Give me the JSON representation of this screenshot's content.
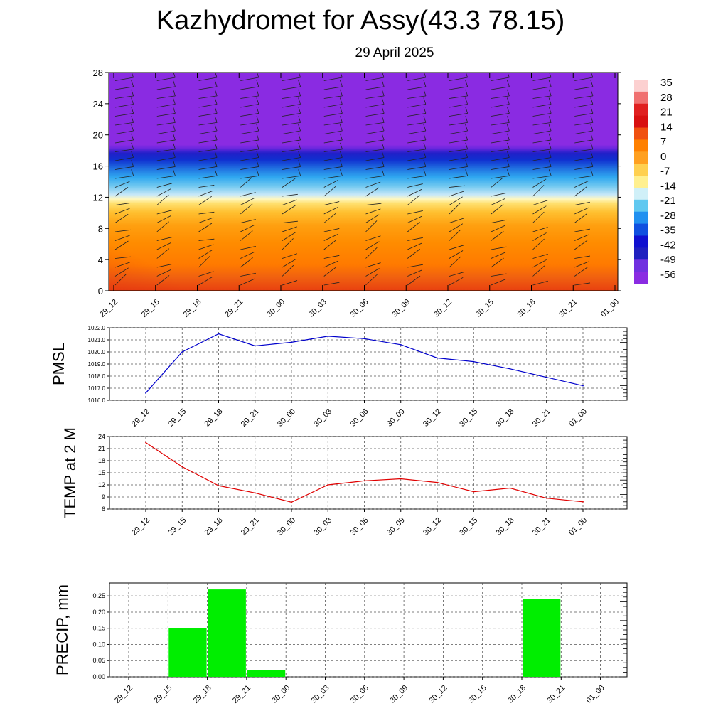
{
  "title": "Kazhydromet for Assy(43.3 78.15)",
  "subtitle": "29 April 2025",
  "colors": {
    "pmsl_line": "#0000cc",
    "temp_line": "#e00000",
    "precip_bar": "#00ee00",
    "purple": "#8a2be2",
    "deep_blue": "#1010d0",
    "yellow": "#ffe060",
    "orange": "#ff8c00",
    "red": "#e03010"
  },
  "chart_data": [
    {
      "type": "heatmap",
      "title": "",
      "xlabel": "",
      "ylabel": "",
      "categories": [
        "29_12",
        "29_15",
        "29_18",
        "29_21",
        "30_00",
        "30_03",
        "30_06",
        "30_09",
        "30_12",
        "30_15",
        "30_18",
        "30_21",
        "01_00"
      ],
      "y_ticks": [
        0,
        4,
        8,
        12,
        16,
        20,
        24,
        28
      ],
      "ylim": [
        0,
        28
      ],
      "colorbar_labels": [
        "35",
        "28",
        "21",
        "14",
        "7",
        "0",
        "-7",
        "-14",
        "-21",
        "-28",
        "-35",
        "-42",
        "-49",
        "-56"
      ],
      "overlay": "wind barbs"
    },
    {
      "type": "line",
      "ylabel": "PMSL",
      "categories": [
        "29_12",
        "29_15",
        "29_18",
        "29_21",
        "30_00",
        "30_03",
        "30_06",
        "30_09",
        "30_12",
        "30_15",
        "30_18",
        "30_21",
        "01_00"
      ],
      "values": [
        1016.6,
        1020.0,
        1021.5,
        1020.5,
        1020.8,
        1021.3,
        1021.1,
        1020.6,
        1019.5,
        1019.2,
        1018.6,
        1017.9,
        1017.2
      ],
      "y_ticks": [
        "1016.0",
        "1017.0",
        "1018.0",
        "1019.0",
        "1020.0",
        "1021.0",
        "1022.0"
      ],
      "ylim": [
        1016,
        1022
      ],
      "grid": true
    },
    {
      "type": "line",
      "ylabel": "TEMP at 2 M",
      "categories": [
        "29_12",
        "29_15",
        "29_18",
        "29_21",
        "30_00",
        "30_03",
        "30_06",
        "30_09",
        "30_12",
        "30_15",
        "30_18",
        "30_21",
        "01_00"
      ],
      "values": [
        22.5,
        16.5,
        11.8,
        10.0,
        7.7,
        12.0,
        13.0,
        13.5,
        12.6,
        10.3,
        11.2,
        8.7,
        7.8
      ],
      "y_ticks": [
        "6",
        "9",
        "12",
        "15",
        "18",
        "21",
        "24"
      ],
      "ylim": [
        6,
        24
      ],
      "grid": true
    },
    {
      "type": "bar",
      "ylabel": "PRECIP, mm",
      "categories": [
        "29_12",
        "29_15",
        "29_18",
        "29_21",
        "30_00",
        "30_03",
        "30_06",
        "30_09",
        "30_12",
        "30_15",
        "30_18",
        "30_21",
        "01_00"
      ],
      "values": [
        0,
        0.15,
        0.27,
        0.02,
        0,
        0,
        0,
        0,
        0,
        0,
        0.24,
        0,
        0
      ],
      "y_ticks": [
        "0.00",
        "0.05",
        "0.10",
        "0.15",
        "0.20",
        "0.25"
      ],
      "ylim": [
        0,
        0.29
      ],
      "grid": true
    }
  ]
}
